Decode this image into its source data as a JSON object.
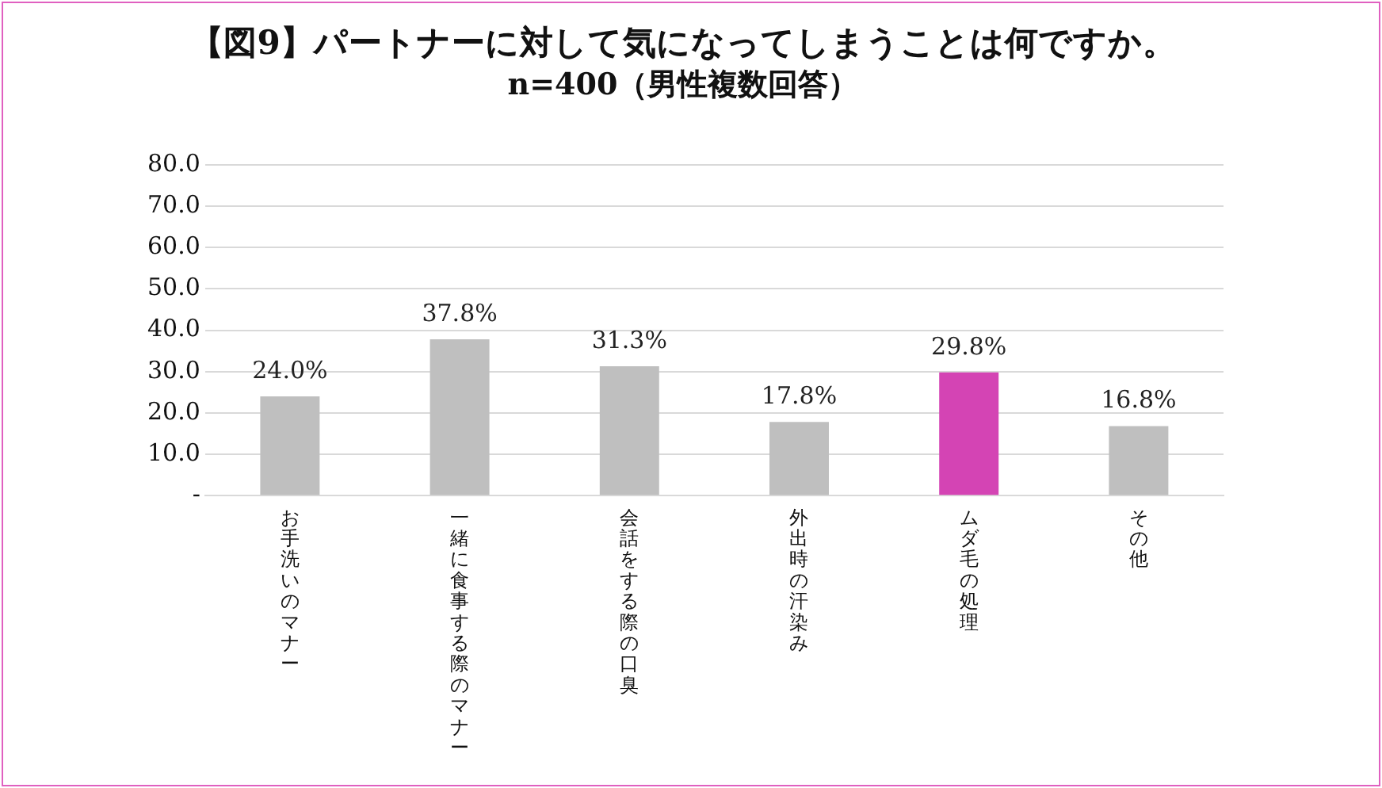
{
  "chart_data": {
    "type": "bar",
    "title": "【図9】パートナーに対して気になってしまうことは何ですか。",
    "subtitle": "n=400（男性複数回答）",
    "categories": [
      "お手洗いのマナー",
      "一緒に食事する際のマナー",
      "会話をする際の口臭",
      "外出時の汗染み",
      "ムダ毛の処理",
      "その他"
    ],
    "values": [
      24.0,
      37.8,
      31.3,
      17.8,
      29.8,
      16.8
    ],
    "colors": [
      "#bfbfbf",
      "#bfbfbf",
      "#bfbfbf",
      "#bfbfbf",
      "#d444b4",
      "#bfbfbf"
    ],
    "value_labels": [
      "24.0%",
      "37.8%",
      "31.3%",
      "17.8%",
      "29.8%",
      "16.8%"
    ],
    "ylim": [
      0,
      80
    ],
    "yticks": [
      {
        "value": 0,
        "label": "-"
      },
      {
        "value": 10,
        "label": "10.0"
      },
      {
        "value": 20,
        "label": "20.0"
      },
      {
        "value": 30,
        "label": "30.0"
      },
      {
        "value": 40,
        "label": "40.0"
      },
      {
        "value": 50,
        "label": "50.0"
      },
      {
        "value": 60,
        "label": "60.0"
      },
      {
        "value": 70,
        "label": "70.0"
      },
      {
        "value": 80,
        "label": "80.0"
      }
    ],
    "grid": "y",
    "legend": false
  }
}
